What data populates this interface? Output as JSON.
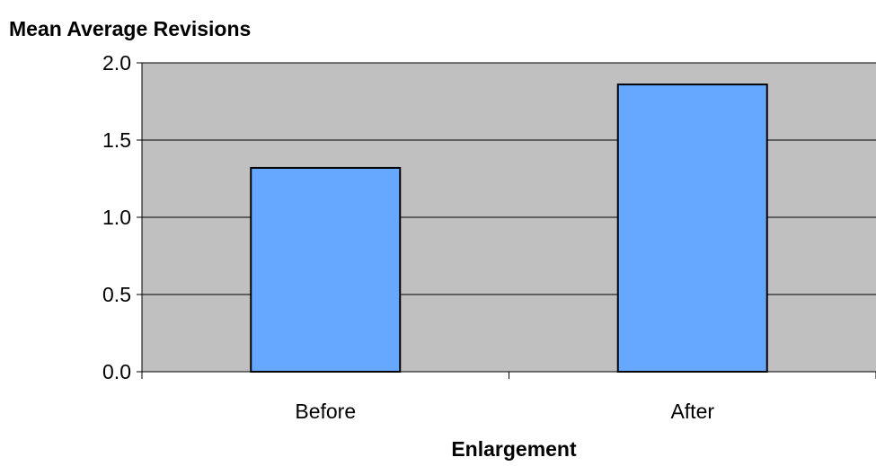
{
  "chart_data": {
    "type": "bar",
    "title": "",
    "ylabel": "Mean Average Revisions",
    "xlabel": "Enlargement",
    "categories": [
      "Before",
      "After"
    ],
    "values": [
      1.32,
      1.86
    ],
    "ylim": [
      0,
      2.0
    ],
    "yticks": [
      "0.0",
      "0.5",
      "1.0",
      "1.5",
      "2.0"
    ],
    "grid": true,
    "legend": "none",
    "colors": {
      "bar_fill": "#66a8ff",
      "bar_stroke": "#000000",
      "plot_background": "#c0c0c0",
      "gridline": "#000000"
    }
  }
}
